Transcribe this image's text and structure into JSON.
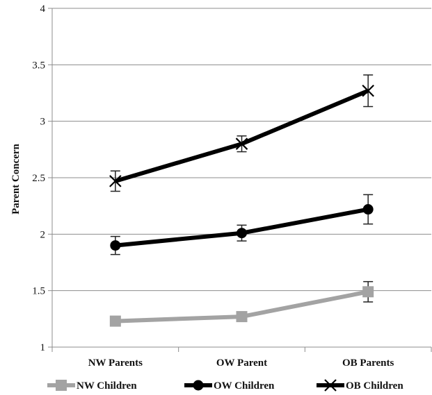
{
  "chart_data": {
    "type": "line",
    "title": "",
    "xlabel": "",
    "ylabel": "Parent Concern",
    "categories": [
      "NW Parents",
      "OW Parent",
      "OB Parents"
    ],
    "ylim": [
      1,
      4
    ],
    "yticks": [
      "1",
      "1.5",
      "2",
      "2.5",
      "3",
      "3.5",
      "4"
    ],
    "grid": "horizontal",
    "legend_position": "bottom",
    "series": [
      {
        "name": "NW Children",
        "values": [
          1.23,
          1.27,
          1.49
        ],
        "error": [
          0.04,
          0.04,
          0.09
        ],
        "marker": "square",
        "color": "#a3a3a3"
      },
      {
        "name": "OW Children",
        "values": [
          1.9,
          2.01,
          2.22
        ],
        "error": [
          0.08,
          0.07,
          0.13
        ],
        "marker": "circle",
        "color": "#000000"
      },
      {
        "name": "OB Children",
        "values": [
          2.47,
          2.8,
          3.27
        ],
        "error": [
          0.09,
          0.07,
          0.14
        ],
        "marker": "x",
        "color": "#000000"
      }
    ]
  }
}
